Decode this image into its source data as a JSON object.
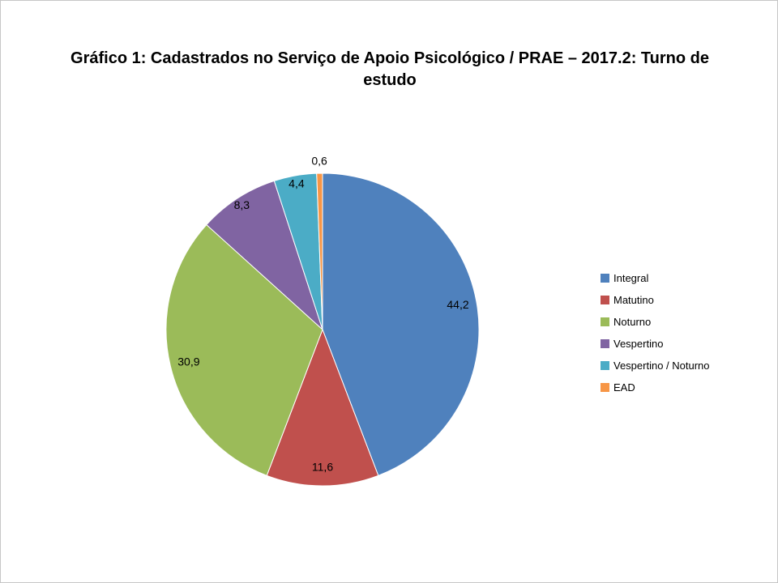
{
  "slide": {
    "background": "#ffffff",
    "border_color": "#c6c6c6"
  },
  "chart_data": {
    "type": "pie",
    "title": "Gráfico 1: Cadastrados no Serviço de Apoio Psicológico / PRAE – 2017.2: Turno de estudo",
    "categories": [
      "Integral",
      "Matutino",
      "Noturno",
      "Vespertino",
      "Vespertino / Noturno",
      "EAD"
    ],
    "values": [
      44.2,
      11.6,
      30.9,
      8.3,
      4.4,
      0.6
    ],
    "value_labels": [
      "44,2",
      "11,6",
      "30,9",
      "8,3",
      "4,4",
      "0,6"
    ],
    "colors": [
      "#4F81BD",
      "#C0504D",
      "#9BBB59",
      "#8064A2",
      "#4BACC6",
      "#F79646"
    ],
    "label_color": "#000000",
    "legend_position": "right",
    "start_angle_deg": 0,
    "direction": "clockwise"
  }
}
